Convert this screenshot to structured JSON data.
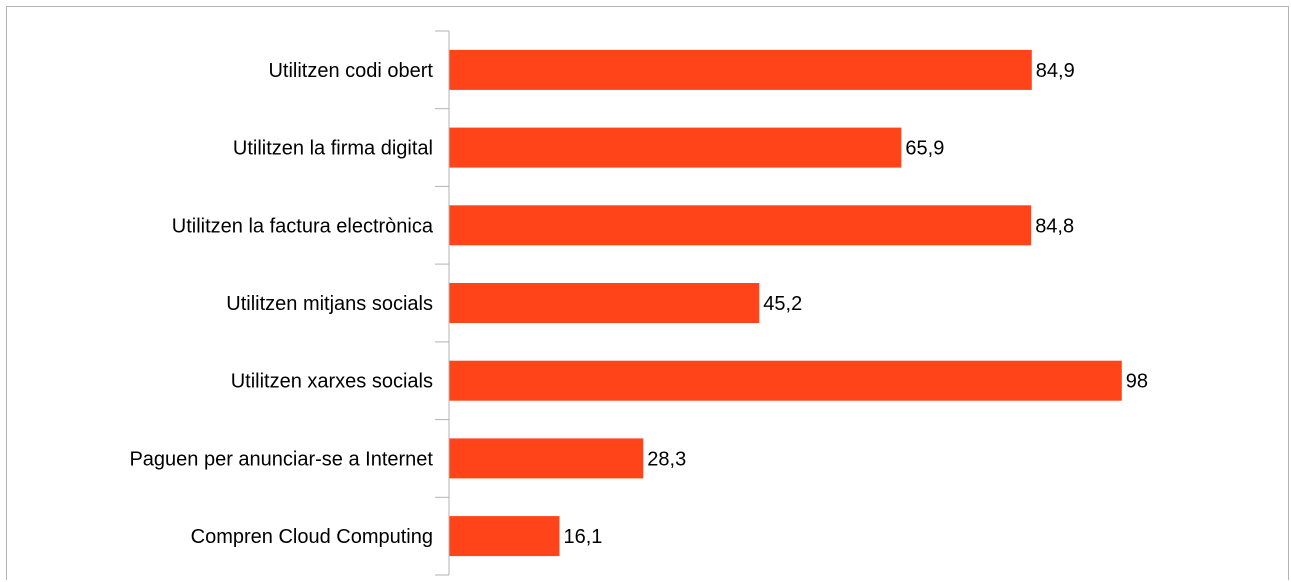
{
  "chart_data": {
    "type": "bar",
    "orientation": "horizontal",
    "categories": [
      "Utilitzen codi obert",
      "Utilitzen la firma digital",
      "Utilitzen la factura electrònica",
      "Utilitzen mitjans socials",
      "Utilitzen xarxes socials",
      "Paguen per anunciar-se a Internet",
      "Compren Cloud Computing"
    ],
    "values": [
      84.9,
      65.9,
      84.8,
      45.2,
      98,
      28.3,
      16.1
    ],
    "value_labels": [
      "84,9",
      "65,9",
      "84,8",
      "45,2",
      "98",
      "28,3",
      "16,1"
    ],
    "xlim": [
      0,
      100
    ],
    "grid": false,
    "legend": "none",
    "bar_color": "#ff4419"
  }
}
